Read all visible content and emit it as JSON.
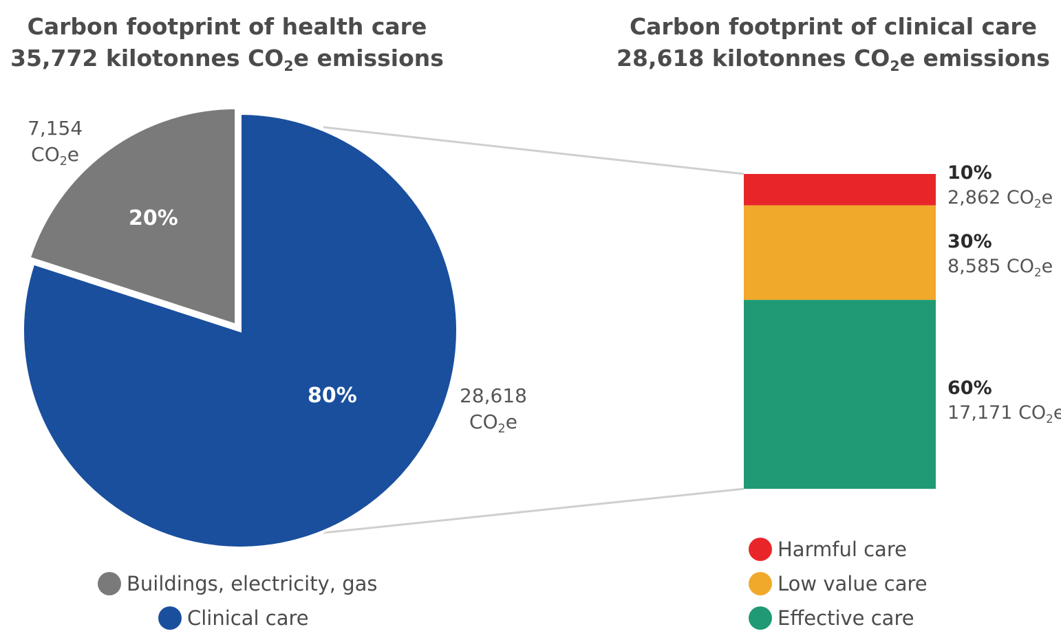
{
  "left": {
    "title_line1": "Carbon footprint of health care",
    "title_line2_pre": "35,772 kilotonnes CO",
    "title_line2_sub": "2",
    "title_line2_post": "e emissions"
  },
  "right": {
    "title_line1": "Carbon footprint of clinical care",
    "title_line2_pre": "28,618 kilotonnes CO",
    "title_line2_sub": "2",
    "title_line2_post": "e emissions"
  },
  "unit": {
    "pre": "CO",
    "sub": "2",
    "post": "e"
  },
  "chart_data": [
    {
      "type": "pie",
      "title": "Carbon footprint of health care 35,772 kilotonnes CO2e emissions",
      "categories": [
        "Buildings, electricity, gas",
        "Clinical care"
      ],
      "values": [
        7154,
        28618
      ],
      "percent_labels": [
        "20%",
        "80%"
      ],
      "value_labels": [
        "7,154",
        "28,618"
      ],
      "colors": [
        "#7a7a7a",
        "#1a4f9e"
      ],
      "legend_position": "bottom"
    },
    {
      "type": "bar",
      "stacked": true,
      "title": "Carbon footprint of clinical care 28,618 kilotonnes CO2e emissions",
      "categories": [
        "Harmful care",
        "Low value care",
        "Effective care"
      ],
      "values": [
        2862,
        8585,
        17171
      ],
      "percent_labels": [
        "10%",
        "30%",
        "60%"
      ],
      "value_labels": [
        "2,862",
        "8,585",
        "17,171"
      ],
      "colors": [
        "#e8262a",
        "#f0a92b",
        "#1f9a74"
      ],
      "legend_position": "bottom"
    }
  ],
  "connector_color": "#cfcfcf"
}
